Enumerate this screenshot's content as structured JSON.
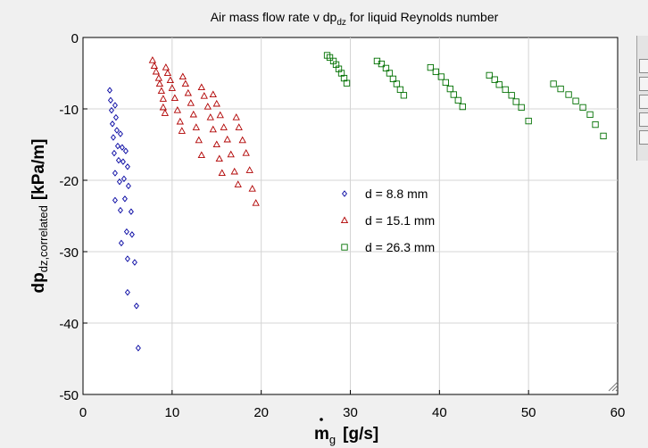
{
  "chart_data": {
    "type": "scatter",
    "title": {
      "main": "Air mass flow rate v dp",
      "sub": "dz",
      "tail": " for liquid Reynolds number"
    },
    "xlabel": {
      "base": "m",
      "sub": "g",
      "unit": "[g/s]"
    },
    "ylabel": {
      "base": "dp",
      "sub": "dz,correlated",
      "unit": "[kPa/m]"
    },
    "xlim": [
      0,
      60
    ],
    "ylim": [
      -50,
      0
    ],
    "x_ticks": [
      "0",
      "10",
      "20",
      "30",
      "40",
      "50",
      "60"
    ],
    "y_ticks": [
      "0",
      "-10",
      "-20",
      "-30",
      "-40",
      "-50"
    ],
    "grid": true,
    "legend_position": "center",
    "series": [
      {
        "name": "d = 8.8 mm",
        "marker": "diamond",
        "color": "#0000a0",
        "points": [
          [
            3.0,
            -7.4
          ],
          [
            3.1,
            -8.8
          ],
          [
            3.2,
            -10.2
          ],
          [
            3.3,
            -12.1
          ],
          [
            3.4,
            -14.0
          ],
          [
            3.5,
            -16.2
          ],
          [
            3.6,
            -19.0
          ],
          [
            3.6,
            -22.8
          ],
          [
            3.6,
            -9.5
          ],
          [
            3.7,
            -11.2
          ],
          [
            3.8,
            -13.0
          ],
          [
            3.9,
            -15.2
          ],
          [
            4.0,
            -17.2
          ],
          [
            4.1,
            -20.2
          ],
          [
            4.2,
            -24.2
          ],
          [
            4.3,
            -28.8
          ],
          [
            4.2,
            -13.5
          ],
          [
            4.4,
            -15.4
          ],
          [
            4.5,
            -17.4
          ],
          [
            4.6,
            -19.8
          ],
          [
            4.7,
            -22.6
          ],
          [
            4.9,
            -27.2
          ],
          [
            5.0,
            -31.0
          ],
          [
            5.0,
            -35.7
          ],
          [
            4.8,
            -15.9
          ],
          [
            5.0,
            -18.1
          ],
          [
            5.1,
            -20.8
          ],
          [
            5.4,
            -24.4
          ],
          [
            5.5,
            -27.6
          ],
          [
            5.8,
            -31.5
          ],
          [
            6.0,
            -37.6
          ],
          [
            6.2,
            -43.5
          ]
        ]
      },
      {
        "name": "d = 15.1 mm",
        "marker": "triangle",
        "color": "#b00000",
        "points": [
          [
            7.8,
            -3.2
          ],
          [
            8.0,
            -4.0
          ],
          [
            8.2,
            -4.8
          ],
          [
            8.5,
            -5.7
          ],
          [
            8.6,
            -6.5
          ],
          [
            8.8,
            -7.5
          ],
          [
            9.0,
            -8.6
          ],
          [
            9.0,
            -9.8
          ],
          [
            9.2,
            -10.6
          ],
          [
            9.3,
            -4.2
          ],
          [
            9.5,
            -5.0
          ],
          [
            9.8,
            -6.0
          ],
          [
            10.0,
            -7.1
          ],
          [
            10.3,
            -8.5
          ],
          [
            10.6,
            -10.2
          ],
          [
            10.9,
            -11.8
          ],
          [
            11.1,
            -13.1
          ],
          [
            11.2,
            -5.5
          ],
          [
            11.5,
            -6.5
          ],
          [
            11.8,
            -7.8
          ],
          [
            12.1,
            -9.2
          ],
          [
            12.4,
            -10.8
          ],
          [
            12.7,
            -12.6
          ],
          [
            13.0,
            -14.4
          ],
          [
            13.3,
            -16.5
          ],
          [
            13.3,
            -7.0
          ],
          [
            13.6,
            -8.2
          ],
          [
            14.0,
            -9.7
          ],
          [
            14.3,
            -11.2
          ],
          [
            14.6,
            -12.9
          ],
          [
            15.0,
            -15.0
          ],
          [
            15.3,
            -17.0
          ],
          [
            15.6,
            -19.0
          ],
          [
            14.6,
            -8.0
          ],
          [
            15.0,
            -9.3
          ],
          [
            15.4,
            -10.9
          ],
          [
            15.8,
            -12.6
          ],
          [
            16.2,
            -14.3
          ],
          [
            16.6,
            -16.4
          ],
          [
            17.0,
            -18.8
          ],
          [
            17.4,
            -20.6
          ],
          [
            17.2,
            -11.2
          ],
          [
            17.5,
            -12.6
          ],
          [
            17.9,
            -14.4
          ],
          [
            18.3,
            -16.2
          ],
          [
            18.7,
            -18.6
          ],
          [
            19.0,
            -21.2
          ],
          [
            19.4,
            -23.2
          ]
        ]
      },
      {
        "name": "d = 26.3 mm",
        "marker": "square",
        "color": "#007000",
        "points": [
          [
            27.4,
            -2.5
          ],
          [
            27.7,
            -2.8
          ],
          [
            28.1,
            -3.3
          ],
          [
            28.4,
            -3.8
          ],
          [
            28.7,
            -4.4
          ],
          [
            29.0,
            -5.0
          ],
          [
            29.3,
            -5.7
          ],
          [
            29.6,
            -6.4
          ],
          [
            33.0,
            -3.3
          ],
          [
            33.5,
            -3.7
          ],
          [
            34.0,
            -4.3
          ],
          [
            34.4,
            -5.0
          ],
          [
            34.8,
            -5.8
          ],
          [
            35.2,
            -6.5
          ],
          [
            35.6,
            -7.3
          ],
          [
            36.0,
            -8.1
          ],
          [
            39.0,
            -4.2
          ],
          [
            39.6,
            -4.8
          ],
          [
            40.2,
            -5.5
          ],
          [
            40.7,
            -6.3
          ],
          [
            41.2,
            -7.2
          ],
          [
            41.6,
            -8.0
          ],
          [
            42.1,
            -8.8
          ],
          [
            42.6,
            -9.7
          ],
          [
            45.6,
            -5.3
          ],
          [
            46.2,
            -5.9
          ],
          [
            46.7,
            -6.6
          ],
          [
            47.4,
            -7.3
          ],
          [
            48.1,
            -8.1
          ],
          [
            48.6,
            -9.0
          ],
          [
            49.2,
            -9.8
          ],
          [
            50.0,
            -11.7
          ],
          [
            52.8,
            -6.5
          ],
          [
            53.6,
            -7.2
          ],
          [
            54.5,
            -8.0
          ],
          [
            55.3,
            -8.9
          ],
          [
            56.1,
            -9.8
          ],
          [
            56.9,
            -10.8
          ],
          [
            57.5,
            -12.2
          ],
          [
            58.4,
            -13.8
          ]
        ]
      }
    ]
  }
}
